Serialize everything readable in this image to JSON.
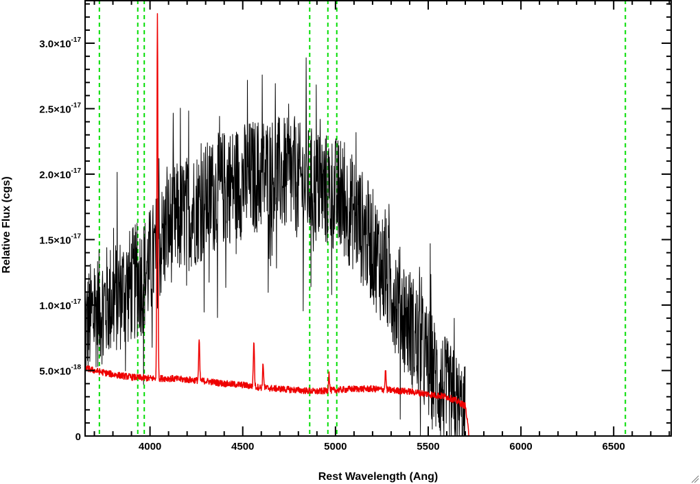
{
  "chart_data": {
    "type": "line",
    "xlabel": "Rest Wavelength (Ang)",
    "ylabel": "Relative Flux (cgs)",
    "xlim": [
      3650,
      6810
    ],
    "ylim": [
      0,
      3.33e-17
    ],
    "grid": false,
    "x_ticks": [
      {
        "value": 4000,
        "label": "4000"
      },
      {
        "value": 4500,
        "label": "4500"
      },
      {
        "value": 5000,
        "label": "5000"
      },
      {
        "value": 5500,
        "label": "5500"
      },
      {
        "value": 6000,
        "label": "6000"
      },
      {
        "value": 6500,
        "label": "6500"
      }
    ],
    "y_ticks": [
      {
        "value": 0,
        "mantissa": "0",
        "exponent": ""
      },
      {
        "value": 5e-18,
        "mantissa": "5.0×10",
        "exponent": "-18"
      },
      {
        "value": 1e-17,
        "mantissa": "1.0×10",
        "exponent": "-17"
      },
      {
        "value": 1.5e-17,
        "mantissa": "1.5×10",
        "exponent": "-17"
      },
      {
        "value": 2e-17,
        "mantissa": "2.0×10",
        "exponent": "-17"
      },
      {
        "value": 2.5e-17,
        "mantissa": "2.5×10",
        "exponent": "-17"
      },
      {
        "value": 3e-17,
        "mantissa": "3.0×10",
        "exponent": "-17"
      }
    ],
    "vertical_lines": [
      {
        "x": 3727,
        "style": "dashed",
        "color": "#00dd00"
      },
      {
        "x": 3934,
        "style": "dashed",
        "color": "#00dd00"
      },
      {
        "x": 3969,
        "style": "dashed",
        "color": "#00dd00"
      },
      {
        "x": 4861,
        "style": "dashed",
        "color": "#00dd00"
      },
      {
        "x": 4959,
        "style": "dashed",
        "color": "#00dd00"
      },
      {
        "x": 5007,
        "style": "dashed",
        "color": "#00dd00"
      },
      {
        "x": 6563,
        "style": "dashed",
        "color": "#00dd00"
      }
    ],
    "series": [
      {
        "color": "#000000",
        "style": "noisy",
        "x": [
          3650,
          3700,
          3750,
          3800,
          3850,
          3900,
          3950,
          4000,
          4050,
          4100,
          4200,
          4300,
          4400,
          4500,
          4600,
          4700,
          4800,
          4900,
          5000,
          5100,
          5200,
          5300,
          5400,
          5500,
          5600,
          5650,
          5700
        ],
        "values": [
          8e-18,
          9.5e-18,
          1e-17,
          1.05e-17,
          1.1e-17,
          1.15e-17,
          1.2e-17,
          1.3e-17,
          1.45e-17,
          1.6e-17,
          1.7e-17,
          1.8e-17,
          1.9e-17,
          1.95e-17,
          2e-17,
          2e-17,
          1.95e-17,
          1.9e-17,
          1.85e-17,
          1.7e-17,
          1.45e-17,
          1.15e-17,
          8.5e-18,
          5.5e-18,
          3e-18,
          2e-18,
          1e-18
        ],
        "noise_amplitude": 4.5e-18
      },
      {
        "color": "#ee0000",
        "style": "smooth",
        "x": [
          3650,
          3700,
          3800,
          3900,
          4000,
          4100,
          4200,
          4300,
          4400,
          4500,
          4600,
          4700,
          4800,
          4900,
          5000,
          5100,
          5200,
          5300,
          5400,
          5500,
          5600,
          5650,
          5700,
          5710,
          5720,
          6810
        ],
        "values": [
          5.2e-18,
          5e-18,
          4.7e-18,
          4.5e-18,
          4.4e-18,
          4.4e-18,
          4.3e-18,
          4.2e-18,
          4e-18,
          3.9e-18,
          3.7e-18,
          3.6e-18,
          3.5e-18,
          3.4e-18,
          3.5e-18,
          3.6e-18,
          3.6e-18,
          3.5e-18,
          3.4e-18,
          3.2e-18,
          3e-18,
          2.7e-18,
          2.3e-18,
          1.2e-18,
          0,
          0
        ],
        "peaks": [
          {
            "x": 4040,
            "value": 3.25e-17
          },
          {
            "x": 4265,
            "value": 7.3e-18
          },
          {
            "x": 4560,
            "value": 7.3e-18
          },
          {
            "x": 4610,
            "value": 5.5e-18
          },
          {
            "x": 4965,
            "value": 4.8e-18
          },
          {
            "x": 5270,
            "value": 5e-18
          }
        ]
      }
    ]
  }
}
